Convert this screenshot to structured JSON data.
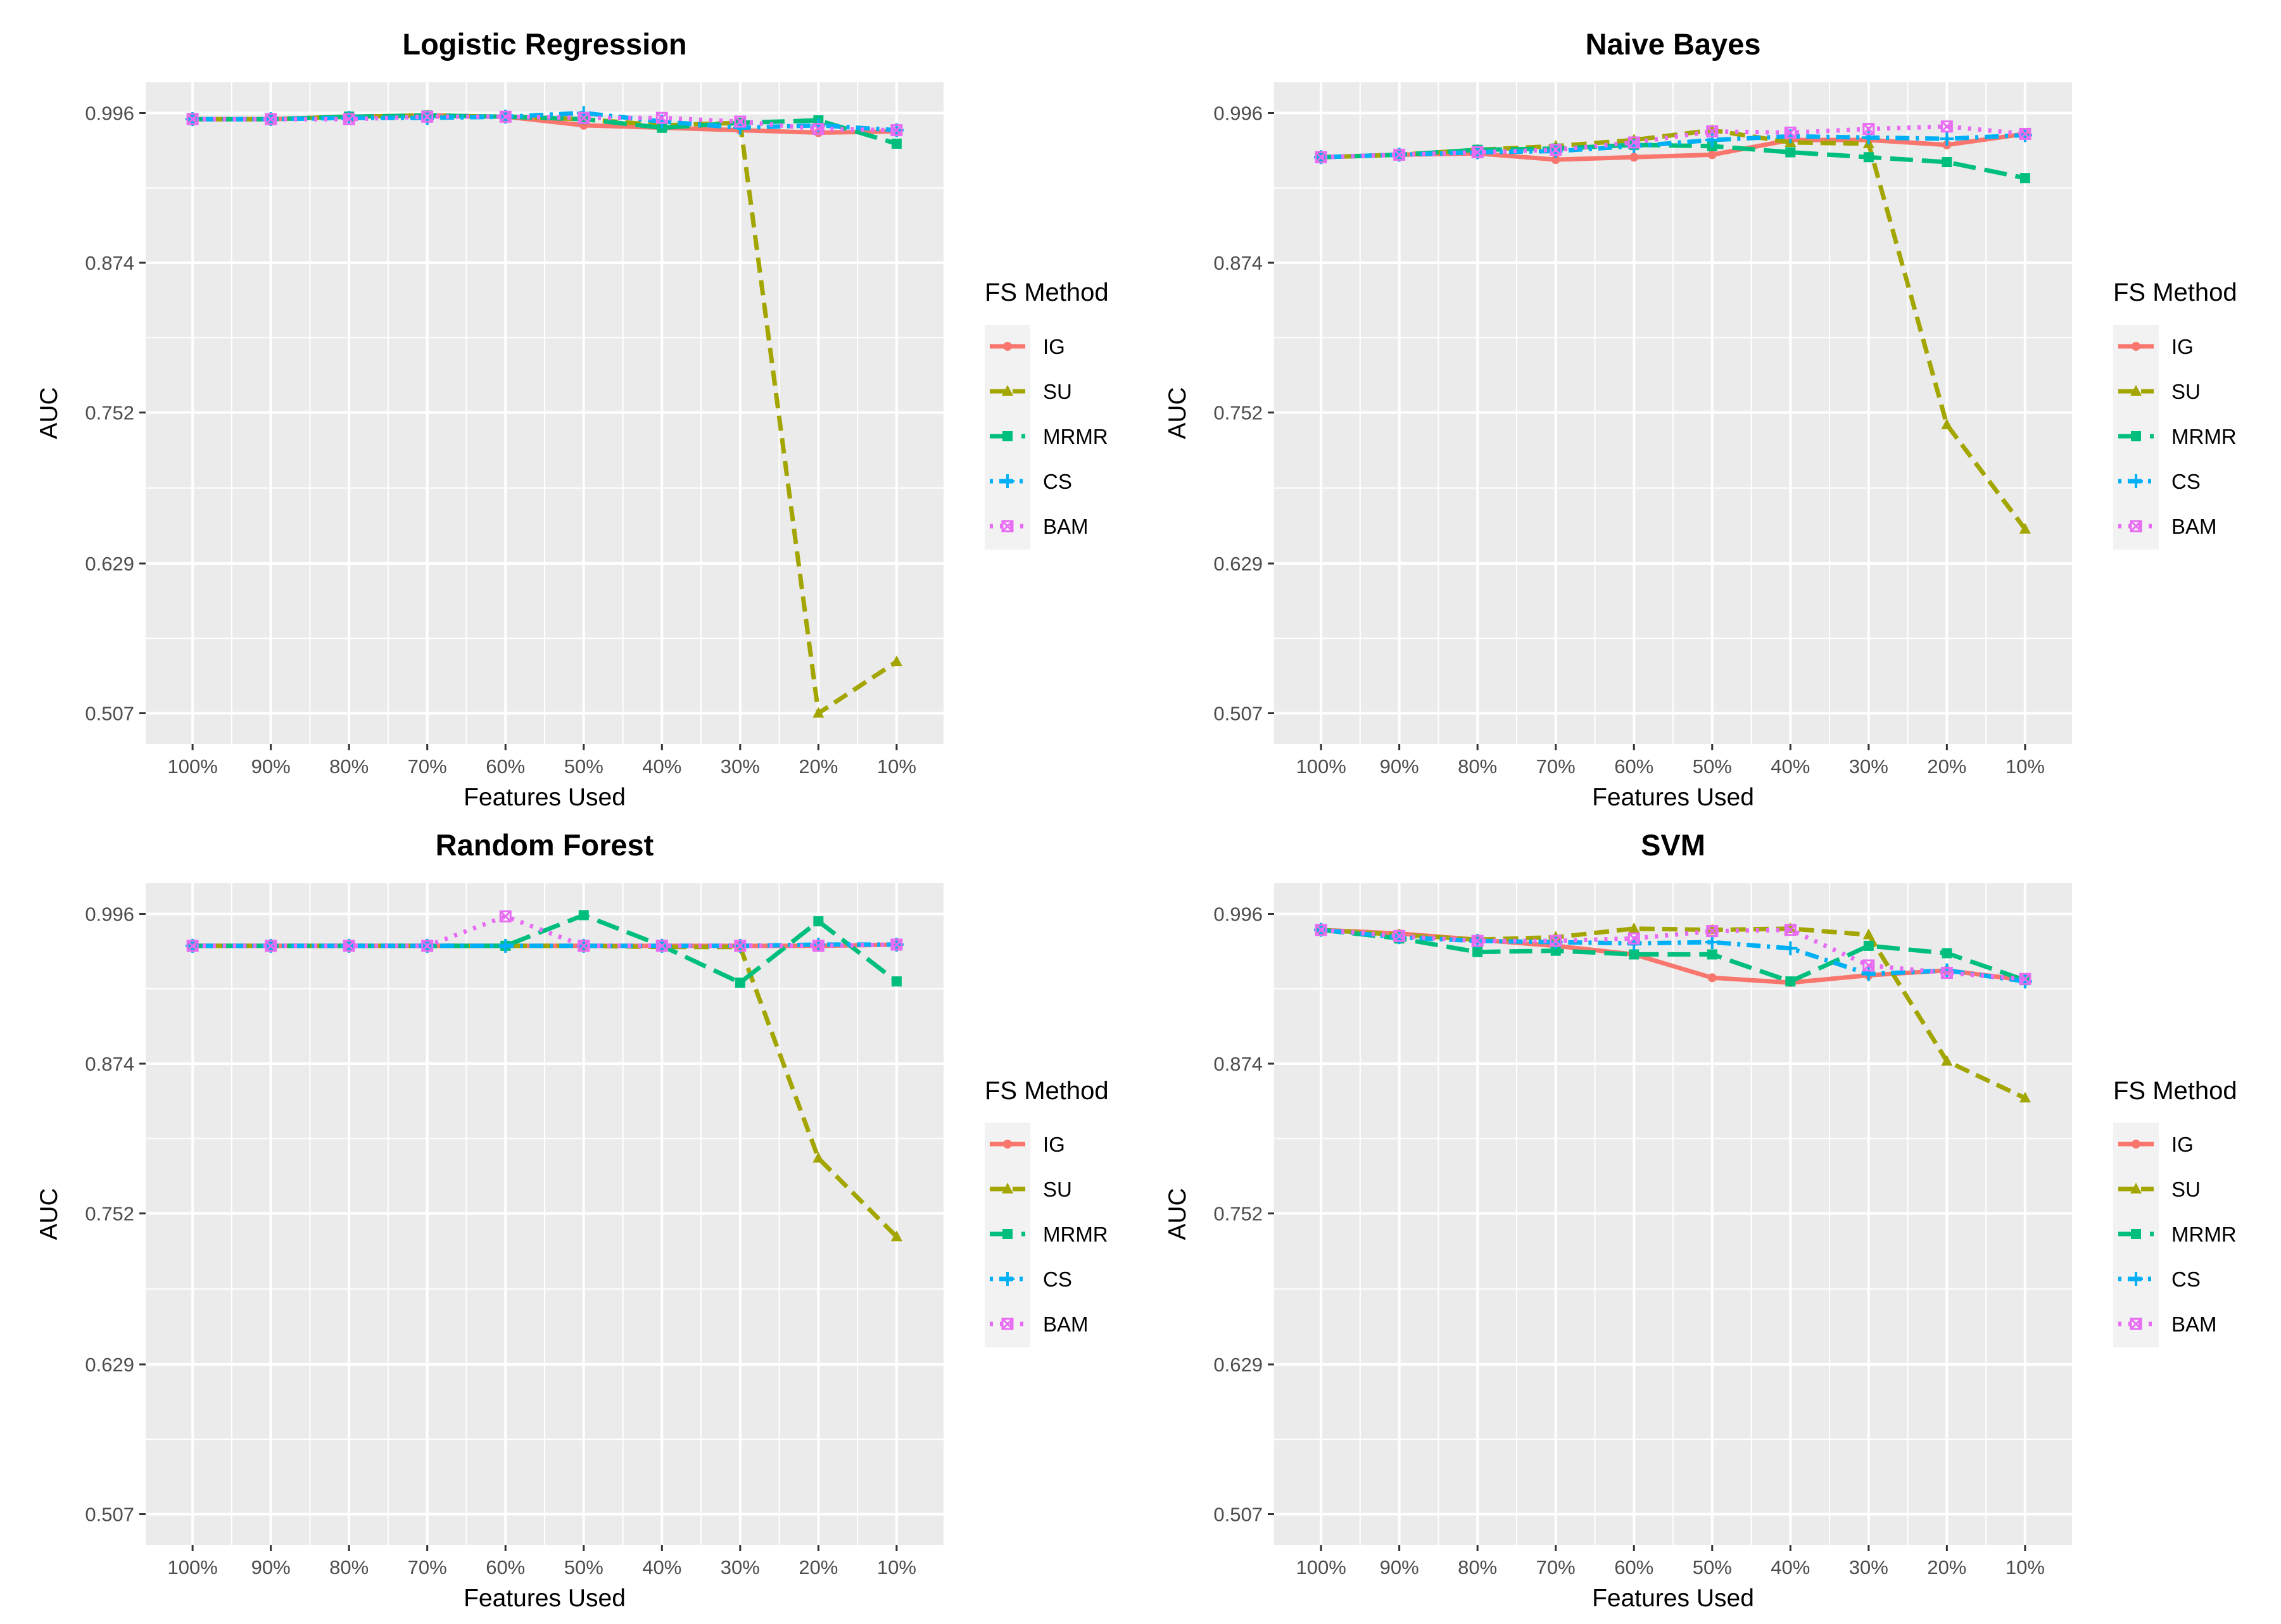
{
  "chart_data": [
    {
      "type": "line",
      "title": "Logistic Regression",
      "xlabel": "Features Used",
      "ylabel": "AUC",
      "categories": [
        "100%",
        "90%",
        "80%",
        "70%",
        "60%",
        "50%",
        "40%",
        "30%",
        "20%",
        "10%"
      ],
      "yticks": [
        "0.507",
        "0.629",
        "0.752",
        "0.874",
        "0.996"
      ],
      "ylim": [
        0.482,
        1.021
      ],
      "grid": true,
      "legend_title": "FS Method",
      "legend_position": "right",
      "series": [
        {
          "name": "IG",
          "values": [
            0.991,
            0.991,
            0.993,
            0.994,
            0.993,
            0.986,
            0.984,
            0.982,
            0.98,
            0.981
          ]
        },
        {
          "name": "SU",
          "values": [
            0.991,
            0.991,
            0.993,
            0.994,
            0.993,
            0.991,
            0.986,
            0.988,
            0.507,
            0.549
          ]
        },
        {
          "name": "MRMR",
          "values": [
            0.991,
            0.991,
            0.993,
            0.994,
            0.993,
            0.991,
            0.984,
            0.988,
            0.99,
            0.971
          ]
        },
        {
          "name": "CS",
          "values": [
            0.991,
            0.991,
            0.992,
            0.992,
            0.993,
            0.996,
            0.989,
            0.984,
            0.986,
            0.982
          ]
        },
        {
          "name": "BAM",
          "values": [
            0.991,
            0.991,
            0.991,
            0.993,
            0.993,
            0.992,
            0.992,
            0.989,
            0.983,
            0.982
          ]
        }
      ]
    },
    {
      "type": "line",
      "title": "Naive Bayes",
      "xlabel": "Features Used",
      "ylabel": "AUC",
      "categories": [
        "100%",
        "90%",
        "80%",
        "70%",
        "60%",
        "50%",
        "40%",
        "30%",
        "20%",
        "10%"
      ],
      "yticks": [
        "0.507",
        "0.629",
        "0.752",
        "0.874",
        "0.996"
      ],
      "ylim": [
        0.482,
        1.021
      ],
      "grid": true,
      "legend_title": "FS Method",
      "legend_position": "right",
      "series": [
        {
          "name": "IG",
          "values": [
            0.96,
            0.962,
            0.963,
            0.958,
            0.96,
            0.962,
            0.974,
            0.974,
            0.97,
            0.979
          ]
        },
        {
          "name": "SU",
          "values": [
            0.96,
            0.962,
            0.966,
            0.969,
            0.974,
            0.982,
            0.972,
            0.971,
            0.742,
            0.657
          ]
        },
        {
          "name": "MRMR",
          "values": [
            0.96,
            0.962,
            0.966,
            0.967,
            0.97,
            0.969,
            0.964,
            0.96,
            0.956,
            0.943
          ]
        },
        {
          "name": "CS",
          "values": [
            0.96,
            0.962,
            0.964,
            0.965,
            0.969,
            0.974,
            0.977,
            0.976,
            0.975,
            0.978
          ]
        },
        {
          "name": "BAM",
          "values": [
            0.96,
            0.962,
            0.964,
            0.966,
            0.972,
            0.981,
            0.98,
            0.983,
            0.985,
            0.979
          ]
        }
      ]
    },
    {
      "type": "line",
      "title": "Random Forest",
      "xlabel": "Features Used",
      "ylabel": "AUC",
      "categories": [
        "100%",
        "90%",
        "80%",
        "70%",
        "60%",
        "50%",
        "40%",
        "30%",
        "20%",
        "10%"
      ],
      "yticks": [
        "0.507",
        "0.629",
        "0.752",
        "0.874",
        "0.996"
      ],
      "ylim": [
        0.482,
        1.021
      ],
      "grid": true,
      "legend_title": "FS Method",
      "legend_position": "right",
      "series": [
        {
          "name": "IG",
          "values": [
            0.97,
            0.97,
            0.97,
            0.97,
            0.97,
            0.97,
            0.97,
            0.97,
            0.97,
            0.971
          ]
        },
        {
          "name": "SU",
          "values": [
            0.97,
            0.97,
            0.97,
            0.97,
            0.97,
            0.97,
            0.969,
            0.969,
            0.797,
            0.733
          ]
        },
        {
          "name": "MRMR",
          "values": [
            0.97,
            0.97,
            0.97,
            0.97,
            0.97,
            0.995,
            0.97,
            0.94,
            0.99,
            0.941
          ]
        },
        {
          "name": "CS",
          "values": [
            0.97,
            0.97,
            0.97,
            0.97,
            0.97,
            0.97,
            0.97,
            0.97,
            0.971,
            0.971
          ]
        },
        {
          "name": "BAM",
          "values": [
            0.97,
            0.97,
            0.97,
            0.97,
            0.994,
            0.97,
            0.97,
            0.97,
            0.97,
            0.971
          ]
        }
      ]
    },
    {
      "type": "line",
      "title": "SVM",
      "xlabel": "Features Used",
      "ylabel": "AUC",
      "categories": [
        "100%",
        "90%",
        "80%",
        "70%",
        "60%",
        "50%",
        "40%",
        "30%",
        "20%",
        "10%"
      ],
      "yticks": [
        "0.507",
        "0.629",
        "0.752",
        "0.874",
        "0.996"
      ],
      "ylim": [
        0.482,
        1.021
      ],
      "grid": true,
      "legend_title": "FS Method",
      "legend_position": "right",
      "series": [
        {
          "name": "IG",
          "values": [
            0.983,
            0.98,
            0.975,
            0.97,
            0.963,
            0.944,
            0.94,
            0.946,
            0.95,
            0.942
          ]
        },
        {
          "name": "SU",
          "values": [
            0.983,
            0.979,
            0.975,
            0.977,
            0.984,
            0.983,
            0.984,
            0.979,
            0.876,
            0.846
          ]
        },
        {
          "name": "MRMR",
          "values": [
            0.983,
            0.976,
            0.965,
            0.966,
            0.963,
            0.963,
            0.941,
            0.97,
            0.964,
            0.942
          ]
        },
        {
          "name": "CS",
          "values": [
            0.983,
            0.977,
            0.974,
            0.973,
            0.972,
            0.973,
            0.968,
            0.947,
            0.95,
            0.941
          ]
        },
        {
          "name": "BAM",
          "values": [
            0.983,
            0.978,
            0.974,
            0.974,
            0.976,
            0.982,
            0.983,
            0.954,
            0.948,
            0.943
          ]
        }
      ]
    }
  ],
  "series_colors": {
    "IG": "#F8766D",
    "SU": "#A3A500",
    "MRMR": "#00BF7D",
    "CS": "#00B0F6",
    "BAM": "#E76BF3"
  },
  "series_styles": {
    "IG": "solid",
    "SU": "dashed",
    "MRMR": "longdash",
    "CS": "dotdash",
    "BAM": "dotted"
  },
  "series_markers": {
    "IG": "circle",
    "SU": "triangle",
    "MRMR": "square",
    "CS": "plus",
    "BAM": "square-cross"
  }
}
